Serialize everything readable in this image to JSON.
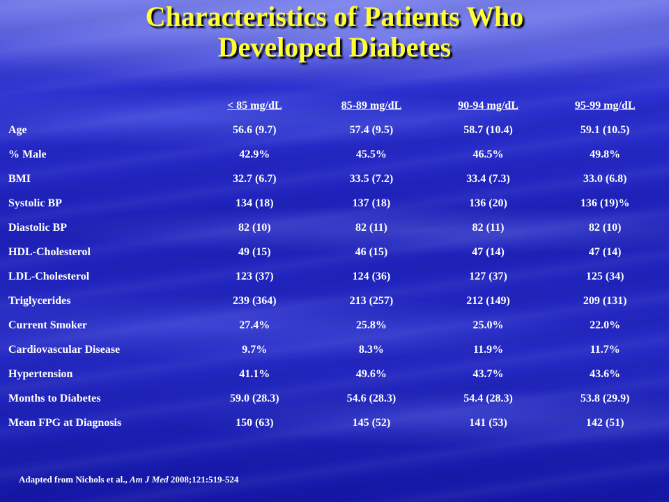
{
  "title": {
    "line1": "Characteristics of Patients Who",
    "line2": "Developed Diabetes"
  },
  "table": {
    "columns": [
      "< 85 mg/dL",
      "85-89 mg/dL",
      "90-94 mg/dL",
      "95-99 mg/dL"
    ],
    "rows": [
      {
        "label": "Age",
        "values": [
          "56.6 (9.7)",
          "57.4 (9.5)",
          "58.7 (10.4)",
          "59.1 (10.5)"
        ]
      },
      {
        "label": "% Male",
        "values": [
          "42.9%",
          "45.5%",
          "46.5%",
          "49.8%"
        ]
      },
      {
        "label": "BMI",
        "values": [
          "32.7 (6.7)",
          "33.5 (7.2)",
          "33.4 (7.3)",
          "33.0 (6.8)"
        ]
      },
      {
        "label": "Systolic BP",
        "values": [
          "134 (18)",
          "137 (18)",
          "136 (20)",
          "136 (19)%"
        ]
      },
      {
        "label": "Diastolic BP",
        "values": [
          "82 (10)",
          "82 (11)",
          "82 (11)",
          "82 (10)"
        ]
      },
      {
        "label": "HDL-Cholesterol",
        "values": [
          "49 (15)",
          "46 (15)",
          "47 (14)",
          "47 (14)"
        ]
      },
      {
        "label": "LDL-Cholesterol",
        "values": [
          "123 (37)",
          "124 (36)",
          "127 (37)",
          "125 (34)"
        ]
      },
      {
        "label": "Triglycerides",
        "values": [
          "239 (364)",
          "213 (257)",
          "212 (149)",
          "209 (131)"
        ]
      },
      {
        "label": "Current Smoker",
        "values": [
          "27.4%",
          "25.8%",
          "25.0%",
          "22.0%"
        ]
      },
      {
        "label": "Cardiovascular Disease",
        "values": [
          "9.7%",
          "8.3%",
          "11.9%",
          "11.7%"
        ]
      },
      {
        "label": "Hypertension",
        "values": [
          "41.1%",
          "49.6%",
          "43.7%",
          "43.6%"
        ]
      },
      {
        "label": "Months to Diabetes",
        "values": [
          "59.0 (28.3)",
          "54.6 (28.3)",
          "54.4 (28.3)",
          "53.8 (29.9)"
        ]
      },
      {
        "label": "Mean FPG at Diagnosis",
        "values": [
          "150 (63)",
          "145 (52)",
          "141 (53)",
          "142 (51)"
        ]
      }
    ]
  },
  "footnote": {
    "prefix": "Adapted from Nichols et al., ",
    "journal": "Am J Med",
    "citation": " 2008;121:519-524"
  },
  "colors": {
    "title": "#ffff33",
    "text": "#ffffff",
    "background": "#1d20b8"
  }
}
